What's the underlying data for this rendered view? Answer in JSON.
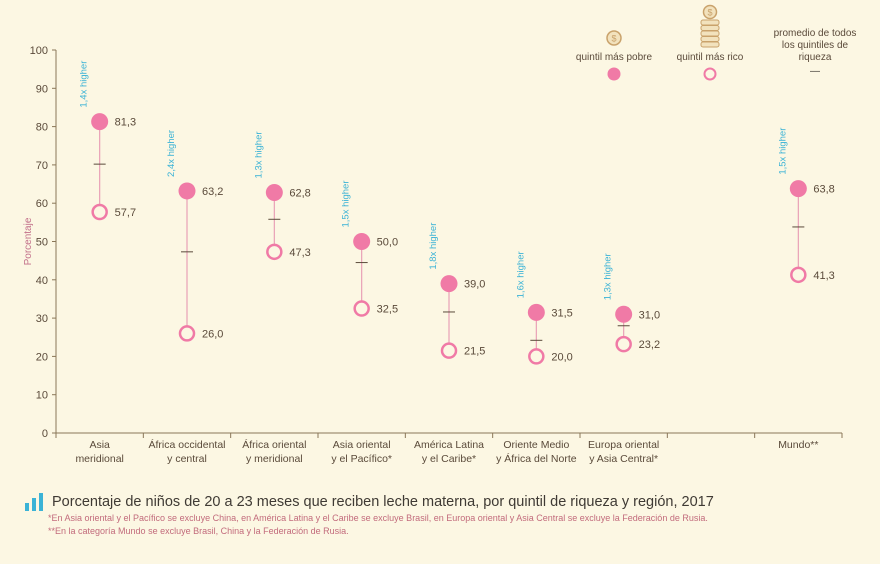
{
  "colors": {
    "pink": "#f07aa6",
    "axis": "#8a7758",
    "stem": "#e8a1b6",
    "ratio_text": "#3bb3d6",
    "coin": "#c9a26b"
  },
  "legend": {
    "poorest_label": "quintil más pobre",
    "richest_label": "quintil más rico",
    "average_label_line1": "promedio de todos",
    "average_label_line2": "los quintiles de",
    "average_label_line3": "riqueza",
    "average_symbol": "—",
    "poorest_icon": "single-coin-icon",
    "richest_icon": "coin-stack-icon"
  },
  "footer": {
    "title": "Porcentaje de niños de 20 a 23 meses que reciben leche materna, por quintil de riqueza y región, 2017",
    "note1": "*En Asia oriental y el Pacífico se excluye China, en América Latina y el Caribe se excluye Brasil, en Europa oriental y Asia Central se excluye la Federación de Rusia.",
    "note2": "**En la categoría Mundo se excluye Brasil, China y la Federación de Rusia.",
    "icon": "bar-chart-icon"
  },
  "chart_data": {
    "type": "dumbbell",
    "ylabel": "Porcentaje",
    "ylim": [
      0,
      100
    ],
    "yticks": [
      0,
      10,
      20,
      30,
      40,
      50,
      60,
      70,
      80,
      90,
      100
    ],
    "categories": [
      {
        "line1": "Asia",
        "line2": "meridional"
      },
      {
        "line1": "África occidental",
        "line2": "y central"
      },
      {
        "line1": "África oriental",
        "line2": "y meridional"
      },
      {
        "line1": "Asia oriental",
        "line2": "y el Pacífico*"
      },
      {
        "line1": "América Latina",
        "line2": "y el Caribe*"
      },
      {
        "line1": "Oriente Medio",
        "line2": "y África del Norte"
      },
      {
        "line1": "Europa oriental",
        "line2": "y Asia Central*"
      },
      {
        "line1": "",
        "line2": ""
      },
      {
        "line1": "Mundo**",
        "line2": ""
      }
    ],
    "series": [
      {
        "name": "quintil más pobre",
        "values": [
          81.3,
          63.2,
          62.8,
          50.0,
          39.0,
          31.5,
          31.0,
          null,
          63.8
        ],
        "labels": [
          "81,3",
          "63,2",
          "62,8",
          "50,0",
          "39,0",
          "31,5",
          "31,0",
          "",
          "63,8"
        ]
      },
      {
        "name": "quintil más rico",
        "values": [
          57.7,
          26.0,
          47.3,
          32.5,
          21.5,
          20.0,
          23.2,
          null,
          41.3
        ],
        "labels": [
          "57,7",
          "26,0",
          "47,3",
          "32,5",
          "21,5",
          "20,0",
          "23,2",
          "",
          "41,3"
        ]
      },
      {
        "name": "promedio de todos los quintiles de riqueza",
        "values": [
          70.2,
          47.3,
          55.8,
          44.5,
          31.6,
          24.2,
          28.0,
          null,
          53.8
        ]
      }
    ],
    "ratios": [
      "1,4x higher",
      "2,4x higher",
      "1,3x higher",
      "1,5x higher",
      "1,8x higher",
      "1,6x higher",
      "1,3x higher",
      "",
      "1,5x higher"
    ]
  }
}
